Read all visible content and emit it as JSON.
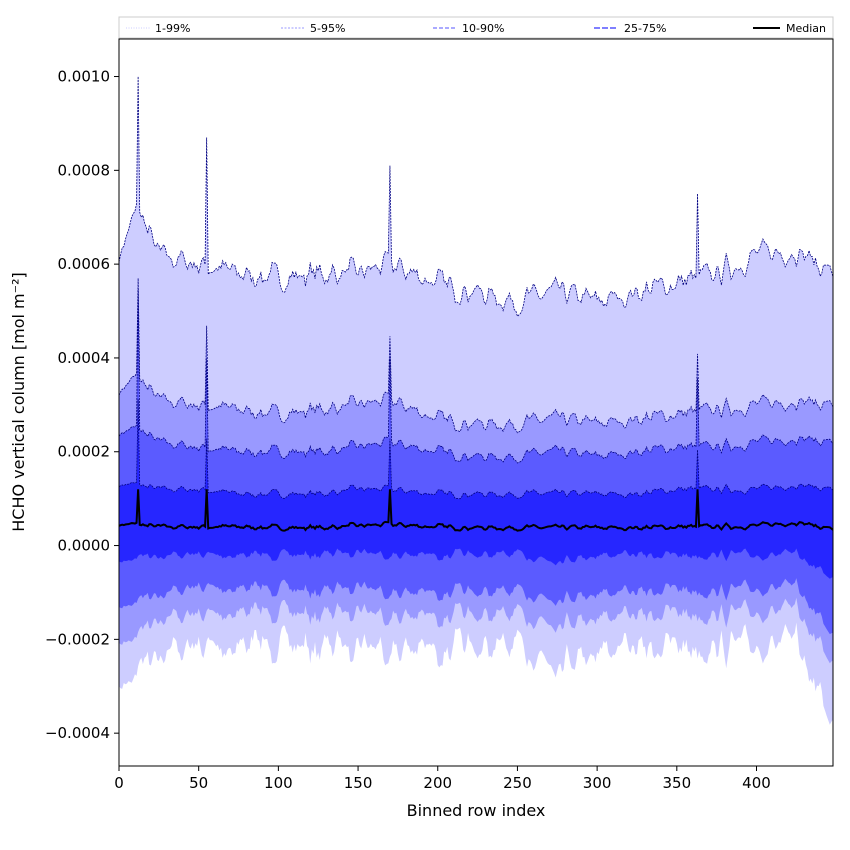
{
  "chart_data": {
    "type": "area",
    "title": "",
    "xlabel": "Binned row index",
    "ylabel": "HCHO vertical column [mol m⁻²]",
    "xlim": [
      0,
      448
    ],
    "ylim": [
      -0.00047,
      0.00108
    ],
    "xticks": [
      0,
      50,
      100,
      150,
      200,
      250,
      300,
      350,
      400
    ],
    "xtick_labels": [
      "0",
      "50",
      "100",
      "150",
      "200",
      "250",
      "300",
      "350",
      "400"
    ],
    "yticks": [
      -0.0004,
      -0.0002,
      0.0,
      0.0002,
      0.0004,
      0.0006,
      0.0008,
      0.001
    ],
    "ytick_labels": [
      "−0.0004",
      "−0.0002",
      "0.0000",
      "0.0002",
      "0.0004",
      "0.0006",
      "0.0008",
      "0.0010"
    ],
    "grid": false,
    "legend_position": "top, single row above plot",
    "colors": {
      "band_1_99": "#cdcdff",
      "band_5_95": "#9999ff",
      "band_10_90": "#5b5bff",
      "band_25_75": "#2626ff",
      "percentile_line": "#000080",
      "median": "#000000"
    },
    "x": [
      0,
      12,
      25,
      50,
      75,
      100,
      125,
      150,
      170,
      200,
      225,
      250,
      275,
      300,
      325,
      350,
      375,
      400,
      425,
      448
    ],
    "series": [
      {
        "name": "1-99%",
        "lower": [
          -0.00032,
          -0.00025,
          -0.00022,
          -0.00022,
          -0.00021,
          -0.00021,
          -0.00022,
          -0.0002,
          -0.00022,
          -0.00022,
          -0.00022,
          -0.00022,
          -0.00024,
          -0.00022,
          -0.00022,
          -0.00021,
          -0.00022,
          -0.00021,
          -0.00021,
          -0.00038
        ],
        "upper": [
          0.00062,
          0.00072,
          0.00062,
          0.0006,
          0.00058,
          0.00057,
          0.00058,
          0.00058,
          0.0006,
          0.00056,
          0.00054,
          0.00052,
          0.00054,
          0.00052,
          0.00054,
          0.00056,
          0.00058,
          0.00062,
          0.00063,
          0.00058
        ]
      },
      {
        "name": "5-95%",
        "lower": [
          -0.00022,
          -0.00018,
          -0.00015,
          -0.00015,
          -0.00014,
          -0.00014,
          -0.00015,
          -0.00013,
          -0.00015,
          -0.00015,
          -0.00015,
          -0.00015,
          -0.00016,
          -0.00015,
          -0.00015,
          -0.00014,
          -0.00015,
          -0.00014,
          -0.00014,
          -0.00025
        ],
        "upper": [
          0.00033,
          0.00036,
          0.00031,
          0.0003,
          0.00029,
          0.00028,
          0.00029,
          0.0003,
          0.00031,
          0.00027,
          0.00026,
          0.00026,
          0.00027,
          0.00026,
          0.00027,
          0.00028,
          0.00029,
          0.0003,
          0.00031,
          0.0003
        ]
      },
      {
        "name": "10-90%",
        "lower": [
          -0.00014,
          -0.00011,
          -0.0001,
          -9e-05,
          -9e-05,
          -9e-05,
          -0.0001,
          -8e-05,
          -0.0001,
          -0.0001,
          -0.0001,
          -0.0001,
          -0.00011,
          -0.0001,
          -0.0001,
          -9e-05,
          -0.0001,
          -9e-05,
          -9e-05,
          -0.00019
        ],
        "upper": [
          0.00024,
          0.00025,
          0.00022,
          0.00021,
          0.0002,
          0.0002,
          0.0002,
          0.00021,
          0.00022,
          0.0002,
          0.00019,
          0.00019,
          0.0002,
          0.00019,
          0.0002,
          0.00021,
          0.00021,
          0.00022,
          0.00023,
          0.00022
        ]
      },
      {
        "name": "25-75%",
        "lower": [
          -4e-05,
          -2e-05,
          -2e-05,
          -2e-05,
          -2e-05,
          -2e-05,
          -2e-05,
          -1e-05,
          -2e-05,
          -2e-05,
          -2e-05,
          -2e-05,
          -3e-05,
          -2e-05,
          -2e-05,
          -2e-05,
          -2e-05,
          -2e-05,
          -2e-05,
          -7e-05
        ],
        "upper": [
          0.00013,
          0.00013,
          0.00012,
          0.00012,
          0.00011,
          0.00011,
          0.00011,
          0.00012,
          0.00012,
          0.00011,
          0.00011,
          0.00011,
          0.00011,
          0.00011,
          0.00011,
          0.00012,
          0.00012,
          0.00012,
          0.00013,
          0.00012
        ]
      },
      {
        "name": "Median",
        "values": [
          4.5e-05,
          4.5e-05,
          4e-05,
          4e-05,
          4e-05,
          3.8e-05,
          3.8e-05,
          4.2e-05,
          4.5e-05,
          4e-05,
          3.8e-05,
          3.8e-05,
          3.8e-05,
          3.8e-05,
          3.8e-05,
          4e-05,
          4e-05,
          4.2e-05,
          5e-05,
          3.5e-05
        ]
      }
    ],
    "spikes": [
      {
        "x": 12,
        "upper_1_99": 0.001,
        "upper_25_75": 0.00052
      },
      {
        "x": 55,
        "upper_1_99": 0.00087,
        "upper_25_75": 0.00038
      },
      {
        "x": 170,
        "upper_1_99": 0.00081,
        "upper_25_75": 0.00038
      },
      {
        "x": 363,
        "upper_1_99": 0.00075,
        "upper_25_75": 0.00034
      }
    ]
  }
}
